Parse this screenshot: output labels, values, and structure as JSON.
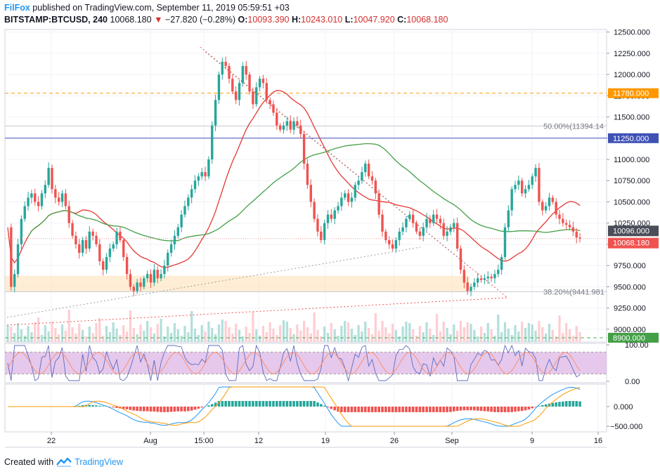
{
  "header": {
    "publisher": "FilFox",
    "published_text": "published on TradingView.com, September 11, 2019 05:59:51 +03",
    "symbol": "BITSTAMP:BTCUSD, 240",
    "last": "10068.180",
    "change": "−27.820 (−0.28%)",
    "open_label": "O:",
    "open": "10093.390",
    "high_label": "H:",
    "high": "10243.010",
    "low_label": "L:",
    "low": "10047.920",
    "close_label": "C:",
    "close": "10068.180"
  },
  "footer": {
    "created_with": "Created with",
    "brand": "TradingView"
  },
  "colors": {
    "up": "#26a69a",
    "down": "#ef5350",
    "ma_fast": "#e53935",
    "ma_slow": "#43a047",
    "orange": "#ff9800",
    "blue": "#3f51b5",
    "rsi_band": "#e1bee7",
    "dark_badge": "#4a4e59",
    "green_badge": "#43a047"
  },
  "chart_data": [
    {
      "type": "line",
      "title": "BITSTAMP:BTCUSD, 240",
      "x_ticks": [
        "22",
        "Aug",
        "15:00",
        "12",
        "19",
        "26",
        "Sep",
        "9",
        "16"
      ],
      "y_ticks": [
        "12500.000",
        "12250.000",
        "12000.000",
        "11750.000",
        "11500.000",
        "11250.000",
        "11000.000",
        "10750.000",
        "10500.000",
        "10250.000",
        "10000.000",
        "9750.000",
        "9500.000",
        "9250.000",
        "9000.000"
      ],
      "ylim": [
        8850,
        12530
      ],
      "series": [
        {
          "name": "",
          "values": [
            10200,
            9500,
            9650,
            10000,
            10300,
            10450,
            10550,
            10600,
            10500,
            10450,
            10600,
            10700,
            10900,
            10650,
            10550,
            10500,
            10600,
            10450,
            10250,
            10100,
            10000,
            9900,
            10050,
            9950,
            10150,
            10100,
            10000,
            9800,
            9700,
            9850,
            9950,
            10000,
            10150,
            10050,
            9850,
            9650,
            9500,
            9450,
            9550,
            9500,
            9600,
            9650,
            9550,
            9700,
            9600,
            9650,
            9750,
            9900,
            10000,
            10100,
            10200,
            10350,
            10450,
            10550,
            10650,
            10750,
            10800,
            10850,
            10800,
            11000,
            11400,
            11700,
            12000,
            12150,
            12100,
            11950,
            11800,
            11700,
            11900,
            12100,
            12000,
            11800,
            11650,
            11850,
            11950,
            11900,
            11700,
            11650,
            11550,
            11400,
            11350,
            11400,
            11450,
            11350,
            11450,
            11400,
            11300,
            10950,
            10700,
            10500,
            10300,
            10150,
            10050,
            10250,
            10350,
            10300,
            10400,
            10450,
            10550,
            10600,
            10500,
            10550,
            10700,
            10750,
            10850,
            10950,
            10800,
            10750,
            10600,
            10350,
            10150,
            10050,
            10000,
            9950,
            10050,
            10150,
            10200,
            10300,
            10350,
            10250,
            10150,
            10100,
            10200,
            10300,
            10250,
            10350,
            10300,
            10250,
            10100,
            10150,
            10200,
            10250,
            9950,
            9700,
            9550,
            9450,
            9500,
            9550,
            9600,
            9580,
            9600,
            9620,
            9600,
            9650,
            9700,
            9850,
            10200,
            10400,
            10650,
            10700,
            10750,
            10600,
            10650,
            10700,
            10800,
            10900,
            10500,
            10400,
            10450,
            10550,
            10500,
            10350,
            10300,
            10250,
            10230,
            10200,
            10150,
            10080,
            10068
          ]
        },
        {
          "name": "",
          "period": 20
        },
        {
          "name": "",
          "period": 50
        }
      ],
      "levels": [
        {
          "value": 11780,
          "label": "11780.000",
          "style": "dashed"
        },
        {
          "value": 11250,
          "label": "11250.000",
          "style": "solid"
        },
        {
          "value": 11394.14,
          "label": "50.00%(11394.14",
          "style": "solid"
        },
        {
          "value": 9441.981,
          "label": "38.20%(9441.981",
          "style": "solid"
        },
        {
          "value": 8900,
          "label": "8900.000",
          "style": "dashed"
        }
      ],
      "badges": [
        {
          "value": 10096,
          "label": "10096.000"
        },
        {
          "value": 10068.18,
          "label": "10068.180"
        }
      ],
      "support_zone": [
        9440,
        9630
      ]
    },
    {
      "type": "line",
      "y_ticks": [
        "100.00",
        "0.00"
      ],
      "band": [
        20,
        80
      ]
    },
    {
      "type": "bar",
      "y_ticks": [
        "0.000",
        "−500.000"
      ]
    }
  ]
}
